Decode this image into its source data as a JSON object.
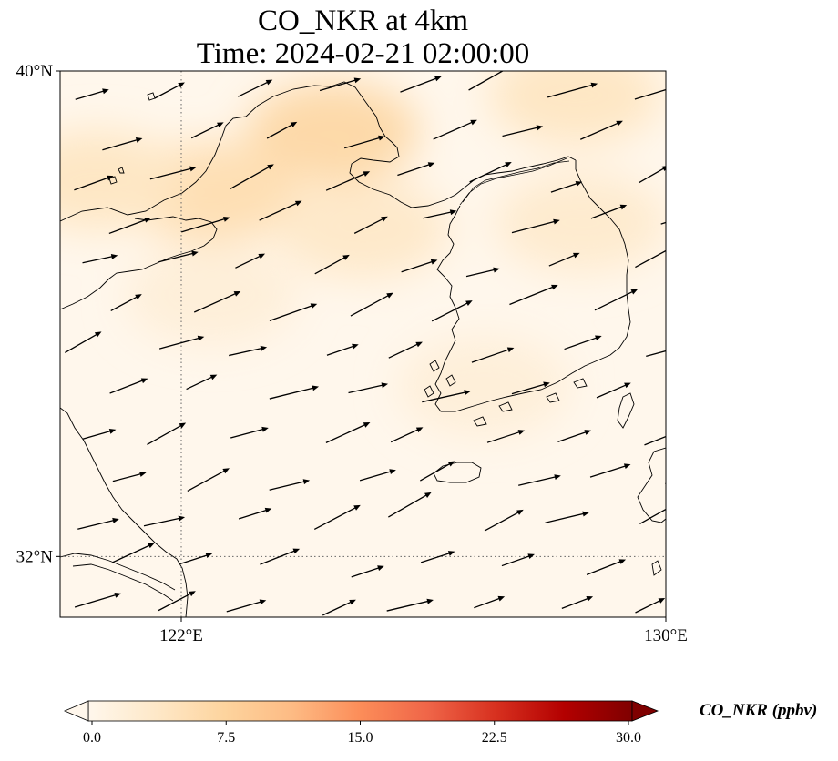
{
  "title": {
    "line1": "CO_NKR at 4km",
    "line2": "Time: 2024-02-21 02:00:00"
  },
  "map": {
    "lon_range": [
      120,
      130
    ],
    "lat_range": [
      31,
      40
    ],
    "lat_ticks": [
      {
        "value": 40,
        "label": "40°N"
      },
      {
        "value": 32,
        "label": "32°N"
      }
    ],
    "lon_ticks": [
      {
        "value": 122,
        "label": "122°E"
      },
      {
        "value": 130,
        "label": "130°E"
      }
    ],
    "gridlines": [
      {
        "axis": "lon",
        "value": 122
      },
      {
        "axis": "lat",
        "value": 32
      }
    ],
    "field_hotspots_ppbv": [
      {
        "lon": 124.5,
        "lat": 39.0,
        "value": 6.5
      },
      {
        "lon": 122.5,
        "lat": 38.0,
        "value": 5.5
      },
      {
        "lon": 120.6,
        "lat": 38.2,
        "value": 4.0
      },
      {
        "lon": 125.0,
        "lat": 37.4,
        "value": 3.5
      },
      {
        "lon": 128.5,
        "lat": 39.6,
        "value": 4.0
      },
      {
        "lon": 128.6,
        "lat": 37.5,
        "value": 3.0
      },
      {
        "lon": 127.0,
        "lat": 34.8,
        "value": 2.0
      },
      {
        "lon": 122.5,
        "lat": 36.3,
        "value": 2.0
      }
    ],
    "wind_description": "west-southwesterly winds across the domain"
  },
  "colorbar": {
    "label": "CO_NKR (ppbv)",
    "min": 0,
    "max": 30,
    "ticks": [
      "0.0",
      "7.5",
      "15.0",
      "22.5",
      "30.0"
    ],
    "colormap": "OrRd",
    "colors": [
      "#fff7ec",
      "#fee8c8",
      "#fdd49e",
      "#fdbb84",
      "#fc8d59",
      "#ef6548",
      "#d7301f",
      "#b30000",
      "#7f0000"
    ],
    "extend": "both"
  }
}
